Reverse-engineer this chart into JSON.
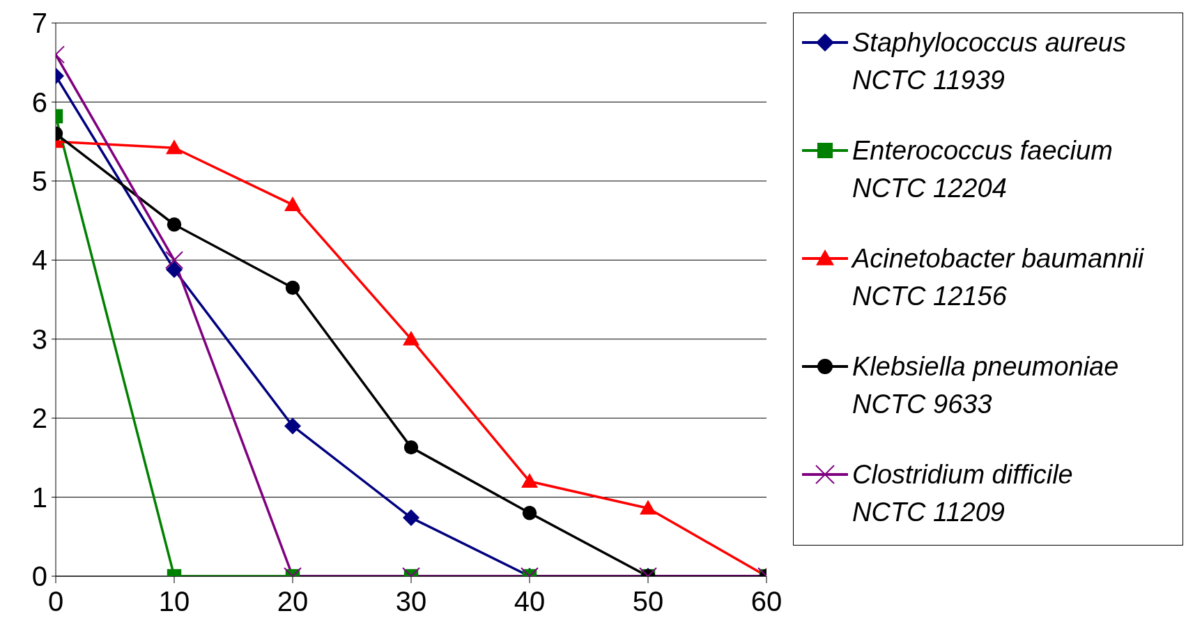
{
  "chart_data": {
    "type": "line",
    "x": [
      0,
      10,
      20,
      30,
      40,
      50,
      60
    ],
    "xlim": [
      0,
      60
    ],
    "xticks": [
      0,
      10,
      20,
      30,
      40,
      50,
      60
    ],
    "ylim": [
      0,
      7
    ],
    "yticks": [
      0,
      1,
      2,
      3,
      4,
      5,
      6,
      7
    ],
    "grid": "y",
    "legend": "right",
    "series": [
      {
        "name": "Staphylococcus aureus\nNCTC 11939",
        "color": "#000080",
        "marker": "diamond",
        "values": [
          6.33,
          3.88,
          1.9,
          0.74,
          0,
          0,
          0
        ]
      },
      {
        "name": "Enterococcus faecium\nNCTC 12204",
        "color": "#008000",
        "marker": "square",
        "values": [
          5.82,
          0,
          0,
          0,
          0,
          0,
          0
        ]
      },
      {
        "name": "Acinetobacter baumannii\nNCTC 12156",
        "color": "#ff0000",
        "marker": "triangle",
        "values": [
          5.5,
          5.42,
          4.7,
          3.0,
          1.2,
          0.86,
          0
        ]
      },
      {
        "name": "Klebsiella pneumoniae\nNCTC 9633",
        "color": "#000000",
        "marker": "circle",
        "values": [
          5.6,
          4.45,
          3.65,
          1.63,
          0.8,
          0,
          0
        ]
      },
      {
        "name": "Clostridium difficile\nNCTC 11209",
        "color": "#800080",
        "marker": "cross",
        "values": [
          6.6,
          4.0,
          0,
          0,
          0,
          0,
          0
        ]
      }
    ]
  }
}
